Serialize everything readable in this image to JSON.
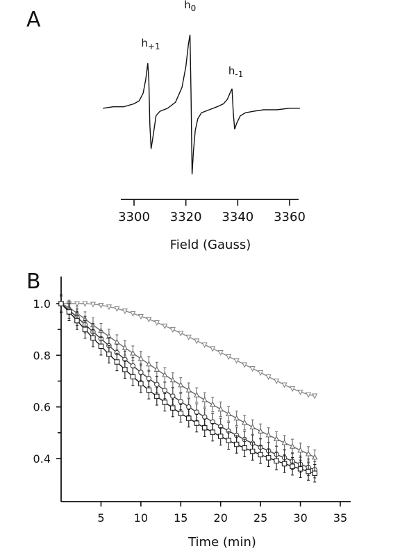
{
  "chart_data": [
    {
      "panel": "A",
      "type": "line",
      "xlabel": "Field (Gauss)",
      "ylabel": "",
      "xlim": [
        3288,
        3364
      ],
      "xticks": [
        3300,
        3320,
        3340,
        3360
      ],
      "grid": false,
      "peak_labels": [
        {
          "main": "h",
          "sub": "+1",
          "x": 3306
        },
        {
          "main": "h",
          "sub": "0",
          "x": 3322
        },
        {
          "main": "h",
          "sub": "-1",
          "x": 3338
        }
      ],
      "series": [
        {
          "x": [
            3288,
            3292,
            3296,
            3300,
            3302,
            3303.5,
            3304.5,
            3305.3,
            3305.7,
            3306.1,
            3306.6,
            3307.3,
            3308.5,
            3310,
            3313,
            3316,
            3318.5,
            3320,
            3321,
            3321.6,
            3322.0,
            3322.4,
            3322.9,
            3323.6,
            3324.6,
            3326,
            3329,
            3332,
            3334.5,
            3336,
            3337,
            3337.8,
            3338.3,
            3338.8,
            3339.6,
            3341,
            3343,
            3346,
            3350,
            3355,
            3360,
            3364
          ],
          "y": [
            0.02,
            0.04,
            0.04,
            0.08,
            0.12,
            0.22,
            0.4,
            0.62,
            0.4,
            -0.2,
            -0.52,
            -0.36,
            -0.08,
            -0.02,
            0.02,
            0.1,
            0.3,
            0.58,
            0.88,
            1.0,
            0.2,
            -0.86,
            -0.56,
            -0.28,
            -0.12,
            -0.04,
            0.0,
            0.04,
            0.08,
            0.14,
            0.22,
            0.28,
            -0.05,
            -0.26,
            -0.18,
            -0.08,
            -0.04,
            -0.02,
            0.0,
            0.0,
            0.02,
            0.02
          ]
        }
      ]
    },
    {
      "panel": "B",
      "type": "line",
      "xlabel": "Time (min)",
      "ylabel": "",
      "xlim": [
        0,
        35
      ],
      "ylim": [
        0.3,
        1.07
      ],
      "xticks": [
        5,
        10,
        15,
        20,
        25,
        30,
        35
      ],
      "yticks": [
        0.4,
        0.6,
        0.8,
        1.0
      ],
      "ytick_labels": [
        "0.4",
        "0.6",
        "0.8",
        "1.0"
      ],
      "grid": false,
      "x": [
        0,
        1,
        2,
        3,
        4,
        5,
        6,
        7,
        8,
        9,
        10,
        11,
        12,
        13,
        14,
        15,
        16,
        17,
        18,
        19,
        20,
        21,
        22,
        23,
        24,
        25,
        26,
        27,
        28,
        29,
        30,
        31,
        31.8
      ],
      "series": [
        {
          "marker": "inverted-triangle",
          "color": "#8a8a8a",
          "error": 0.004,
          "values": [
            1.0,
            1.0,
            1.0,
            1.0,
            0.998,
            0.994,
            0.988,
            0.981,
            0.972,
            0.962,
            0.951,
            0.94,
            0.927,
            0.914,
            0.9,
            0.886,
            0.871,
            0.856,
            0.841,
            0.826,
            0.811,
            0.795,
            0.78,
            0.764,
            0.749,
            0.733,
            0.717,
            0.701,
            0.686,
            0.671,
            0.658,
            0.648,
            0.643
          ]
        },
        {
          "marker": "triangle",
          "color": "#6a6a6a",
          "error": 0.028,
          "values": [
            1.0,
            0.985,
            0.963,
            0.94,
            0.917,
            0.895,
            0.873,
            0.851,
            0.829,
            0.808,
            0.787,
            0.766,
            0.745,
            0.724,
            0.704,
            0.685,
            0.665,
            0.646,
            0.627,
            0.609,
            0.591,
            0.573,
            0.556,
            0.539,
            0.522,
            0.506,
            0.491,
            0.476,
            0.461,
            0.447,
            0.432,
            0.418,
            0.405
          ]
        },
        {
          "marker": "circle",
          "color": "#3a3a3a",
          "error": 0.032,
          "values": [
            1.0,
            0.975,
            0.947,
            0.919,
            0.891,
            0.864,
            0.837,
            0.81,
            0.784,
            0.759,
            0.734,
            0.71,
            0.687,
            0.664,
            0.642,
            0.621,
            0.6,
            0.58,
            0.561,
            0.542,
            0.524,
            0.507,
            0.49,
            0.474,
            0.459,
            0.444,
            0.43,
            0.416,
            0.403,
            0.39,
            0.378,
            0.366,
            0.357
          ]
        },
        {
          "marker": "square",
          "color": "#1a1a1a",
          "error": 0.034,
          "values": [
            1.0,
            0.968,
            0.934,
            0.9,
            0.867,
            0.835,
            0.804,
            0.774,
            0.745,
            0.717,
            0.69,
            0.665,
            0.641,
            0.618,
            0.596,
            0.575,
            0.556,
            0.537,
            0.519,
            0.502,
            0.486,
            0.47,
            0.455,
            0.441,
            0.428,
            0.415,
            0.403,
            0.391,
            0.38,
            0.37,
            0.36,
            0.35,
            0.343
          ]
        }
      ]
    }
  ]
}
